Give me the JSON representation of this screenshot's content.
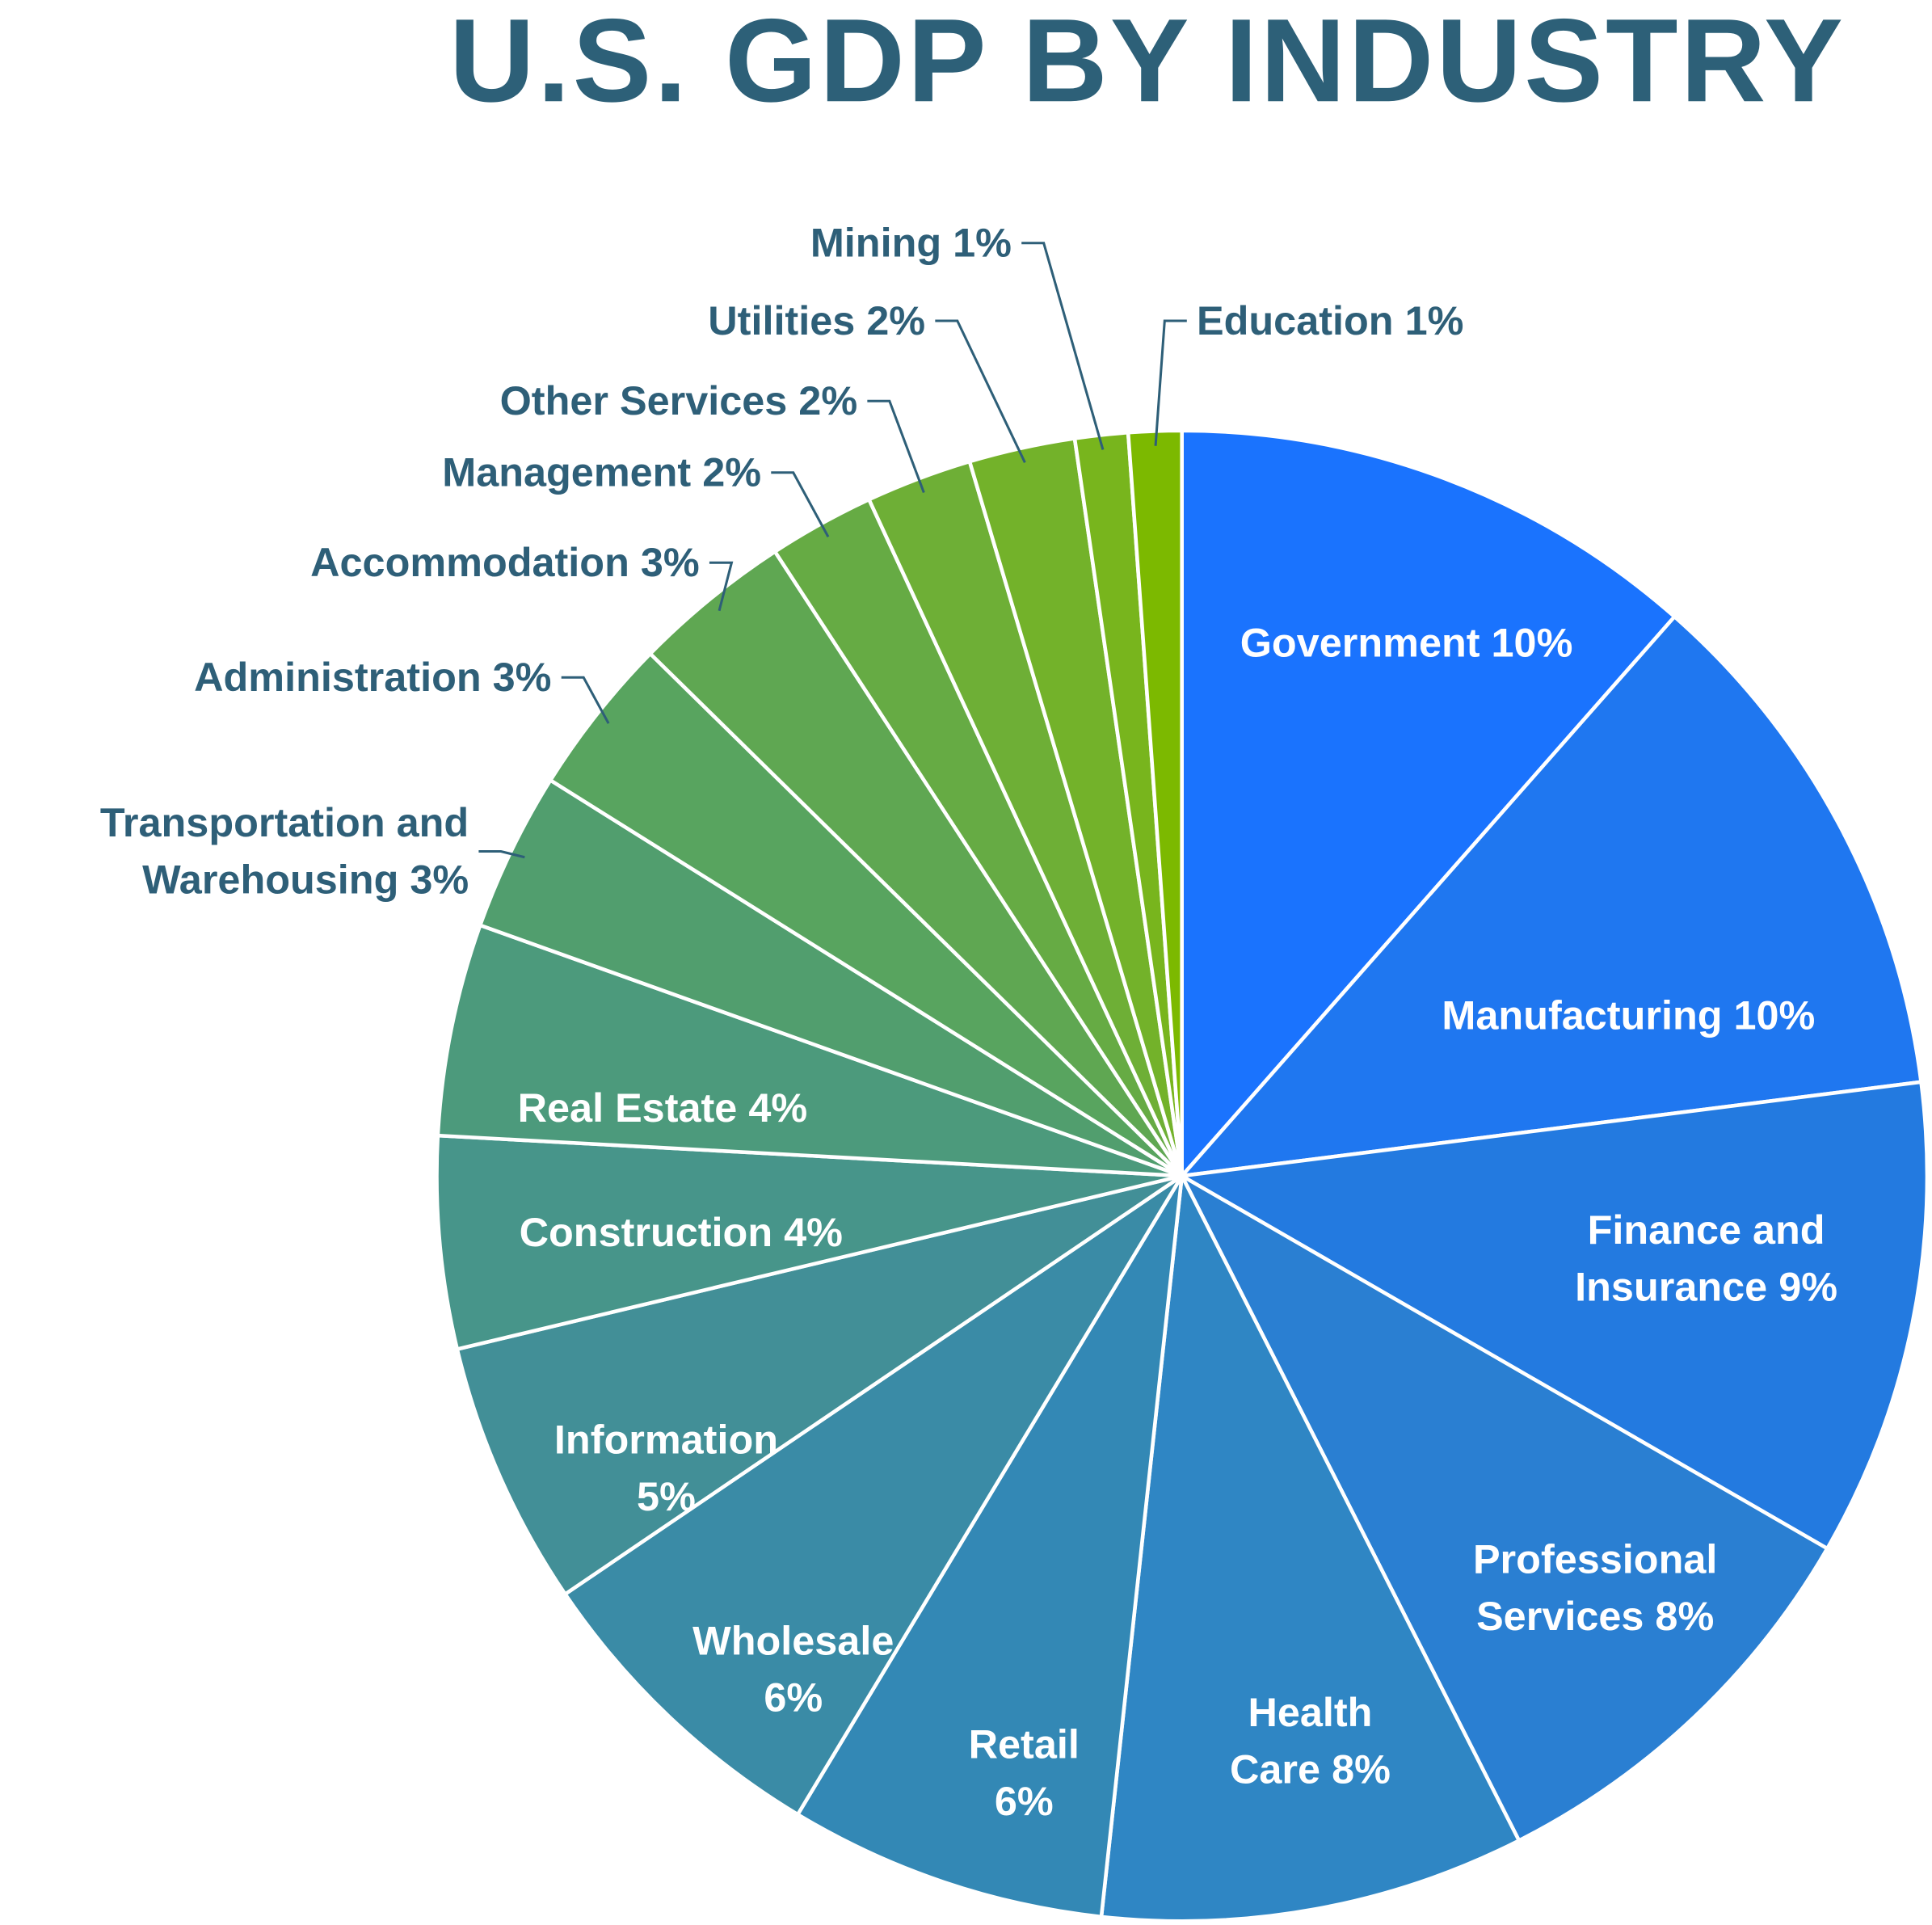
{
  "chart_data": {
    "type": "pie",
    "title": "U.S. GDP BY INDUSTRY",
    "categories": [
      "Government",
      "Manufacturing",
      "Finance and Insurance",
      "Professional Services",
      "Health Care",
      "Retail",
      "Wholesale",
      "Information",
      "Construction",
      "Real Estate",
      "Transportation and Warehousing",
      "Administration",
      "Accommodation",
      "Management",
      "Other Services",
      "Utilities",
      "Mining",
      "Education"
    ],
    "values": [
      10,
      10,
      9,
      8,
      8,
      6,
      6,
      5,
      4,
      4,
      3,
      3,
      3,
      2,
      2,
      2,
      1,
      1
    ],
    "value_labels": [
      "10%",
      "10%",
      "9%",
      "8%",
      "8%",
      "6%",
      "6%",
      "5%",
      "4%",
      "4%",
      "3%",
      "3%",
      "3%",
      "2%",
      "2%",
      "2%",
      "1%",
      "1%"
    ],
    "colors": [
      "#1a73fe",
      "#1f77f0",
      "#237ae0",
      "#2a7fd2",
      "#2f86c4",
      "#3388b5",
      "#3a8ba6",
      "#428f97",
      "#47958a",
      "#4c9a7c",
      "#519e6e",
      "#58a45f",
      "#5fa752",
      "#66ab44",
      "#6eaf36",
      "#73b22a",
      "#78b51d",
      "#7cb900"
    ]
  }
}
